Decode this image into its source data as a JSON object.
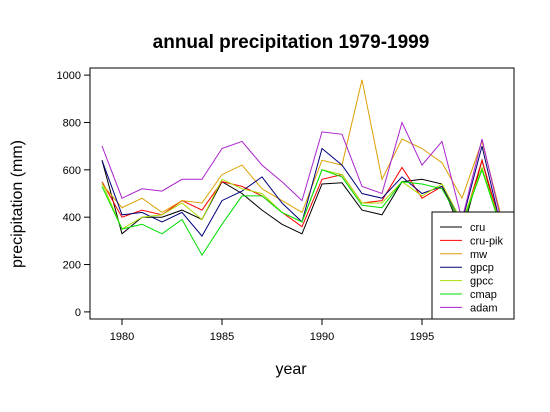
{
  "chart_data": {
    "type": "line",
    "title": "annual precipitation 1979-1999",
    "xlabel": "year",
    "ylabel": "precipitation (mm)",
    "xlim": [
      1978.4,
      1999.6
    ],
    "ylim": [
      -30,
      1030
    ],
    "x_ticks": [
      1980,
      1985,
      1990,
      1995
    ],
    "y_ticks": [
      0,
      200,
      400,
      600,
      800,
      1000
    ],
    "legend_position": "bottom-right",
    "x": [
      1979,
      1980,
      1981,
      1982,
      1983,
      1984,
      1985,
      1986,
      1987,
      1988,
      1989,
      1990,
      1991,
      1992,
      1993,
      1994,
      1995,
      1996,
      1997,
      1998,
      1999
    ],
    "series": [
      {
        "name": "cru",
        "color": "#000000",
        "values": [
          640,
          330,
          400,
          400,
          430,
          390,
          550,
          500,
          430,
          370,
          330,
          540,
          545,
          430,
          410,
          550,
          560,
          540,
          330,
          640,
          330
        ]
      },
      {
        "name": "cru-pik",
        "color": "#ff0000",
        "values": [
          550,
          400,
          430,
          410,
          470,
          430,
          550,
          530,
          490,
          420,
          360,
          560,
          580,
          460,
          470,
          610,
          480,
          530,
          360,
          640,
          350
        ]
      },
      {
        "name": "mw",
        "color": "#dca000",
        "values": [
          540,
          440,
          480,
          420,
          470,
          460,
          580,
          620,
          520,
          470,
          420,
          640,
          620,
          980,
          560,
          730,
          690,
          630,
          480,
          720,
          390
        ]
      },
      {
        "name": "gpcp",
        "color": "#00007a",
        "values": [
          640,
          410,
          420,
          380,
          420,
          320,
          470,
          510,
          570,
          460,
          380,
          690,
          620,
          500,
          480,
          570,
          500,
          530,
          380,
          700,
          340
        ]
      },
      {
        "name": "gpcc",
        "color": "#aadd00",
        "values": [
          545,
          350,
          400,
          410,
          460,
          390,
          560,
          520,
          500,
          420,
          380,
          600,
          580,
          460,
          460,
          550,
          490,
          540,
          380,
          610,
          350
        ]
      },
      {
        "name": "cmap",
        "color": "#00dd00",
        "values": [
          530,
          350,
          370,
          330,
          390,
          240,
          370,
          490,
          490,
          420,
          380,
          600,
          570,
          450,
          440,
          550,
          540,
          520,
          370,
          600,
          340
        ]
      },
      {
        "name": "adam",
        "color": "#aa22cc",
        "values": [
          700,
          480,
          520,
          510,
          560,
          560,
          690,
          720,
          620,
          550,
          470,
          760,
          750,
          530,
          500,
          800,
          620,
          720,
          390,
          730,
          370
        ]
      }
    ]
  }
}
